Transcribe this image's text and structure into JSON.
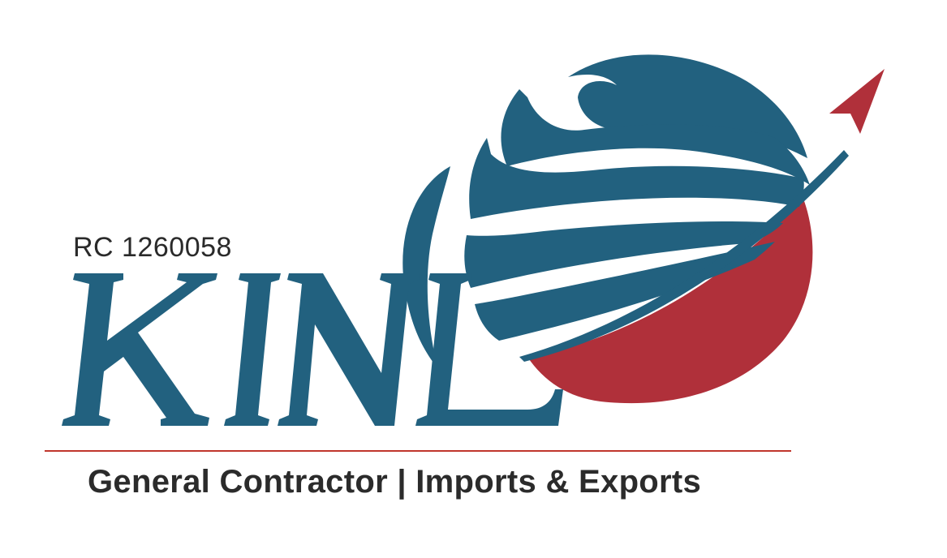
{
  "logo": {
    "wordmark": "KINL",
    "registration": "RC 1260058",
    "tagline": "General Contractor | Imports & Exports"
  },
  "colors": {
    "brand_blue": "#22617f",
    "brand_red": "#b0303a",
    "text_dark": "#2b2b2b",
    "divider_red": "#c0362c",
    "background": "#ffffff"
  },
  "icons": {
    "globe": "globe-icon",
    "arrow": "upward-arrow-icon"
  }
}
